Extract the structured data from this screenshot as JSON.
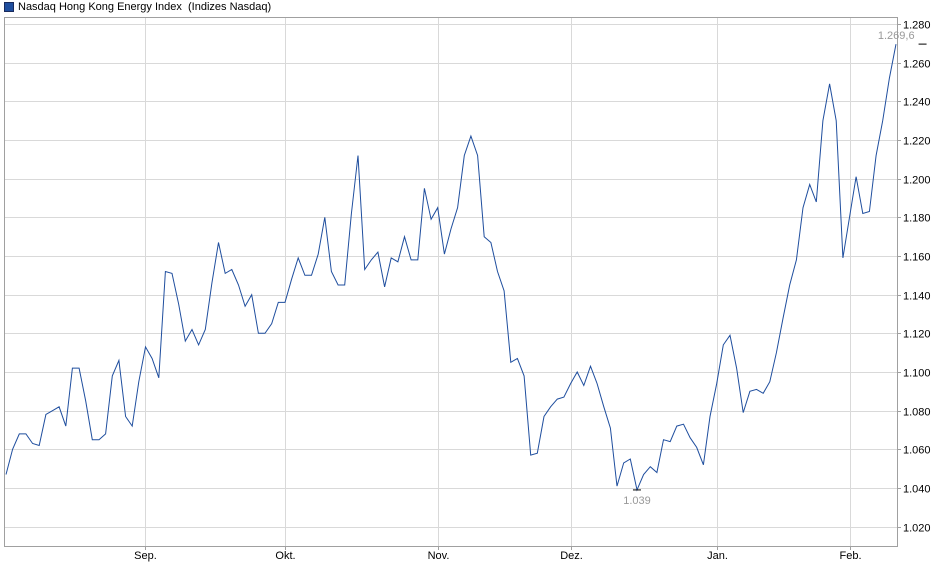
{
  "chart_data": {
    "type": "line",
    "legend": "Nasdaq Hong Kong Energy Index  (Indizes Nasdaq)",
    "title": "",
    "xlabel": "",
    "ylabel": "",
    "ylim": [
      1.01,
      1.28
    ],
    "y_ticks": [
      {
        "value": 1.02,
        "label": "1.020"
      },
      {
        "value": 1.04,
        "label": "1.040"
      },
      {
        "value": 1.06,
        "label": "1.060"
      },
      {
        "value": 1.08,
        "label": "1.080"
      },
      {
        "value": 1.1,
        "label": "1.100"
      },
      {
        "value": 1.12,
        "label": "1.120"
      },
      {
        "value": 1.14,
        "label": "1.140"
      },
      {
        "value": 1.16,
        "label": "1.160"
      },
      {
        "value": 1.18,
        "label": "1.180"
      },
      {
        "value": 1.2,
        "label": "1.200"
      },
      {
        "value": 1.22,
        "label": "1.220"
      },
      {
        "value": 1.24,
        "label": "1.240"
      },
      {
        "value": 1.26,
        "label": "1.260"
      },
      {
        "value": 1.28,
        "label": "1.280"
      }
    ],
    "x_ticks": [
      {
        "index": 21,
        "label": "Sep."
      },
      {
        "index": 42,
        "label": "Okt."
      },
      {
        "index": 65,
        "label": "Nov."
      },
      {
        "index": 85,
        "label": "Dez."
      },
      {
        "index": 107,
        "label": "Jan."
      },
      {
        "index": 127,
        "label": "Feb."
      }
    ],
    "grid": true,
    "line_color": "#1f4e9e",
    "series": [
      {
        "values": [
          1.047,
          1.06,
          1.068,
          1.068,
          1.063,
          1.062,
          1.078,
          1.08,
          1.082,
          1.072,
          1.102,
          1.102,
          1.085,
          1.065,
          1.065,
          1.068,
          1.098,
          1.106,
          1.077,
          1.072,
          1.095,
          1.113,
          1.107,
          1.097,
          1.152,
          1.151,
          1.135,
          1.116,
          1.122,
          1.114,
          1.122,
          1.146,
          1.167,
          1.151,
          1.153,
          1.145,
          1.134,
          1.14,
          1.12,
          1.12,
          1.125,
          1.136,
          1.136,
          1.148,
          1.159,
          1.15,
          1.15,
          1.161,
          1.18,
          1.152,
          1.145,
          1.145,
          1.182,
          1.212,
          1.153,
          1.158,
          1.162,
          1.144,
          1.159,
          1.157,
          1.17,
          1.158,
          1.158,
          1.195,
          1.179,
          1.185,
          1.161,
          1.174,
          1.185,
          1.212,
          1.222,
          1.212,
          1.17,
          1.167,
          1.152,
          1.142,
          1.105,
          1.107,
          1.098,
          1.057,
          1.058,
          1.077,
          1.082,
          1.086,
          1.087,
          1.094,
          1.1,
          1.093,
          1.103,
          1.094,
          1.082,
          1.071,
          1.041,
          1.053,
          1.055,
          1.039,
          1.047,
          1.051,
          1.048,
          1.065,
          1.064,
          1.072,
          1.073,
          1.066,
          1.061,
          1.052,
          1.077,
          1.094,
          1.114,
          1.119,
          1.102,
          1.079,
          1.09,
          1.091,
          1.089,
          1.095,
          1.11,
          1.128,
          1.145,
          1.158,
          1.185,
          1.197,
          1.188,
          1.23,
          1.249,
          1.23,
          1.159,
          1.18,
          1.201,
          1.182,
          1.183,
          1.212,
          1.23,
          1.252,
          1.2696
        ]
      }
    ],
    "annotations": [
      {
        "index": 138,
        "value": 1.2696,
        "label": "1.269,6",
        "kind": "max"
      },
      {
        "index": 95,
        "value": 1.039,
        "label": "1.039",
        "kind": "min"
      }
    ]
  }
}
